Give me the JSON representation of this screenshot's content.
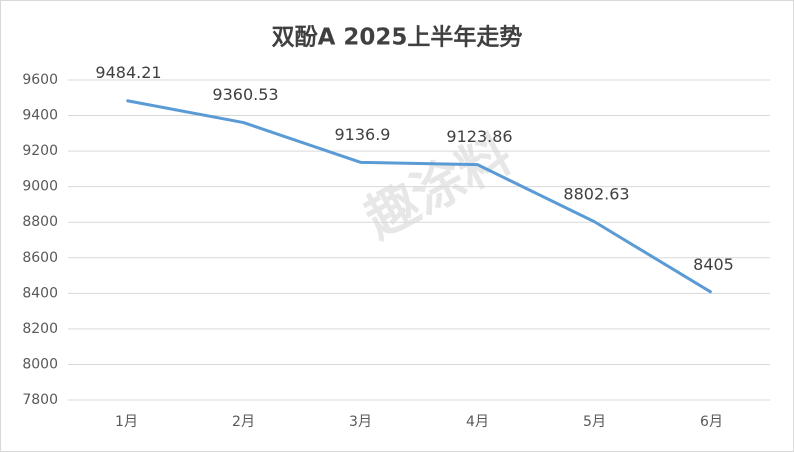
{
  "chart_data": {
    "type": "line",
    "title": "双酚A 2025上半年走势",
    "categories": [
      "1月",
      "2月",
      "3月",
      "4月",
      "5月",
      "6月"
    ],
    "series": [
      {
        "name": "双酚A",
        "color": "#5b9bd5",
        "values": [
          9484.21,
          9360.53,
          9136.9,
          9123.86,
          8802.63,
          8405
        ]
      }
    ],
    "ylim": [
      7800,
      9600
    ],
    "yticks": [
      7800,
      8000,
      8200,
      8400,
      8600,
      8800,
      9000,
      9200,
      9400,
      9600
    ],
    "grid": true,
    "legend": false,
    "data_labels": true,
    "watermark": "趣涂料"
  }
}
